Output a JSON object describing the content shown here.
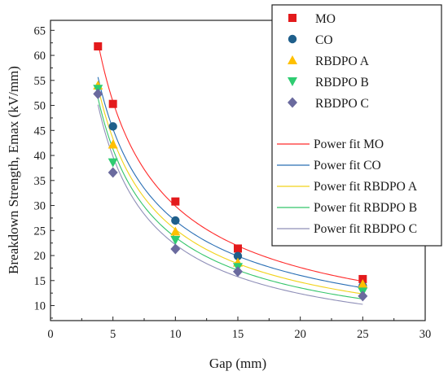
{
  "chart_data": {
    "type": "scatter",
    "xlabel": "Gap (mm)",
    "ylabel": "Breakdown Strength, Emax (kV/mm)",
    "xlim": [
      0,
      30
    ],
    "ylim": [
      7,
      67
    ],
    "x_ticks": [
      0,
      5,
      10,
      15,
      20,
      25,
      30
    ],
    "y_ticks": [
      10,
      15,
      20,
      25,
      30,
      35,
      40,
      45,
      50,
      55,
      60,
      65
    ],
    "x_tick_labels": [
      "0",
      "5",
      "10",
      "15",
      "20",
      "25",
      "30"
    ],
    "y_tick_labels": [
      "10",
      "15",
      "20",
      "25",
      "30",
      "35",
      "40",
      "45",
      "50",
      "55",
      "60",
      "65"
    ],
    "grid": false,
    "legend_position": "top-right",
    "series": [
      {
        "name": "MO",
        "marker": "square",
        "color": "#e31a1c",
        "x": [
          3.8,
          5,
          10,
          15,
          25
        ],
        "y": [
          61.8,
          50.3,
          30.8,
          21.4,
          15.3
        ]
      },
      {
        "name": "CO",
        "marker": "circle",
        "color": "#1f5f8b",
        "x": [
          5,
          10,
          15,
          25
        ],
        "y": [
          45.8,
          27.0,
          19.9,
          13.9
        ]
      },
      {
        "name": "RBDPO A",
        "marker": "triangle-up",
        "color": "#ffc000",
        "x": [
          3.8,
          5,
          10,
          15,
          25
        ],
        "y": [
          54.0,
          42.2,
          24.8,
          18.6,
          14.3
        ]
      },
      {
        "name": "RBDPO B",
        "marker": "triangle-down",
        "color": "#2ecc71",
        "x": [
          3.8,
          5,
          10,
          15,
          25
        ],
        "y": [
          53.3,
          38.6,
          23.1,
          17.7,
          12.8
        ]
      },
      {
        "name": "RBDPO C",
        "marker": "diamond",
        "color": "#6a6a9e",
        "x": [
          3.8,
          5,
          10,
          15,
          25
        ],
        "y": [
          52.3,
          36.6,
          21.3,
          16.8,
          11.9
        ]
      }
    ],
    "fits": [
      {
        "name": "Power fit MO",
        "color": "#ff2a2a",
        "x": [
          3.8,
          5,
          10,
          15,
          25
        ],
        "y": [
          63.0,
          50.5,
          30.0,
          21.6,
          15.0
        ]
      },
      {
        "name": "Power fit CO",
        "color": "#2a6fb5",
        "x": [
          3.8,
          5,
          10,
          15,
          25
        ],
        "y": [
          56.0,
          45.0,
          27.0,
          19.8,
          13.6
        ]
      },
      {
        "name": "Power fit RBDPO A",
        "color": "#f2d21a",
        "x": [
          3.8,
          5,
          10,
          15,
          25
        ],
        "y": [
          54.5,
          43.0,
          25.0,
          18.2,
          12.5
        ]
      },
      {
        "name": "Power fit RBDPO B",
        "color": "#34c56a",
        "x": [
          3.8,
          5,
          10,
          15,
          25
        ],
        "y": [
          52.0,
          41.0,
          23.5,
          17.0,
          11.4
        ]
      },
      {
        "name": "Power fit RBDPO C",
        "color": "#8f8fb8",
        "x": [
          3.8,
          5,
          10,
          15,
          25
        ],
        "y": [
          50.5,
          39.5,
          22.0,
          16.0,
          10.2
        ]
      }
    ]
  }
}
